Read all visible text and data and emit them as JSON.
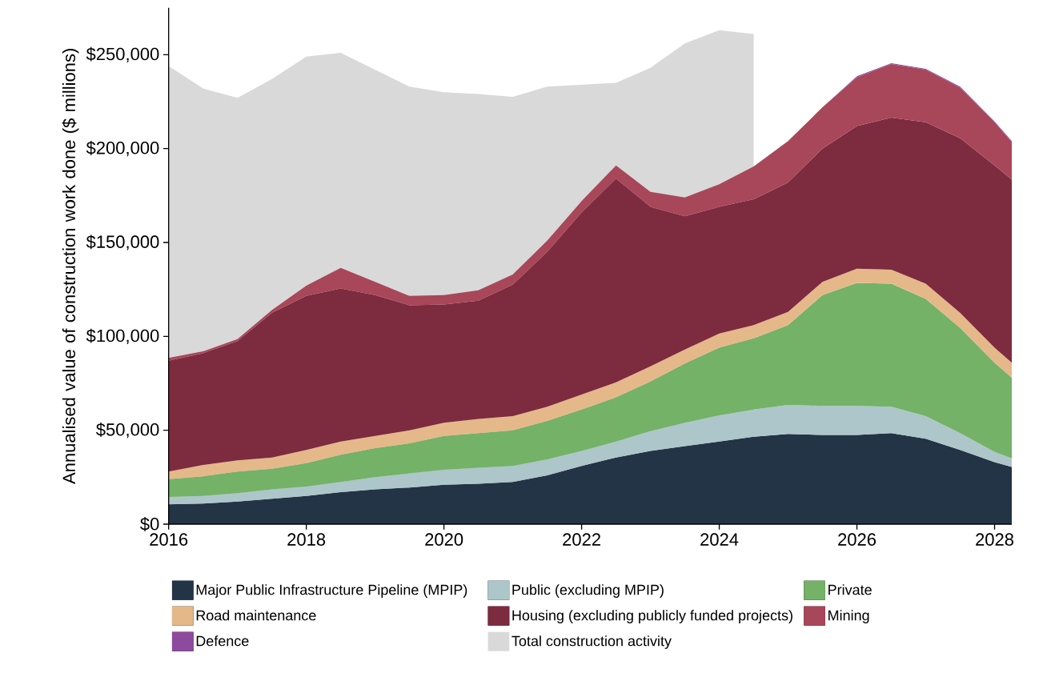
{
  "chart_data": [
    {
      "type": "area",
      "tick_labels": false,
      "legend": "bottom",
      "x": [
        2016,
        2016.5,
        2017,
        2017.5,
        2018,
        2018.5,
        2019,
        2019.5,
        2020,
        2020.5,
        2021,
        2021.5,
        2022,
        2022.5,
        2023,
        2023.5,
        2024,
        2024.5
      ],
      "series": [
        {
          "name": "Total construction activity",
          "color": "#d9d9d9",
          "values": [
            244000,
            232000,
            227000,
            237000,
            249000,
            251000,
            242000,
            233000,
            230000,
            229000,
            227500,
            233000,
            234000,
            235000,
            243000,
            256000,
            263000,
            261000
          ]
        }
      ],
      "xlim": [
        2016,
        2028.25
      ],
      "ylim": [
        0,
        275000
      ]
    },
    {
      "type": "area",
      "stacked": true,
      "ylabel": "Annualised value of construction work done ($ millions)",
      "x": [
        2016,
        2016.5,
        2017,
        2017.5,
        2018,
        2018.5,
        2019,
        2019.5,
        2020,
        2020.5,
        2021,
        2021.5,
        2022,
        2022.5,
        2023,
        2023.5,
        2024,
        2024.5,
        2025,
        2025.5,
        2026,
        2026.5,
        2027,
        2027.5,
        2028,
        2028.25
      ],
      "series": [
        {
          "name": "Major Public Infrastructure Pipeline (MPIP)",
          "color": "#243447",
          "values": [
            10500,
            11000,
            12000,
            13500,
            15000,
            17000,
            18500,
            19500,
            21000,
            21500,
            22500,
            26000,
            31000,
            35500,
            39000,
            41500,
            44000,
            46500,
            48000,
            47500,
            47500,
            48500,
            45500,
            39500,
            33000,
            30500
          ]
        },
        {
          "name": "Public (excluding MPIP)",
          "color": "#adc6c9",
          "values": [
            4000,
            4000,
            4500,
            5000,
            5000,
            5500,
            6500,
            7500,
            8000,
            8500,
            8500,
            8500,
            8000,
            8500,
            10500,
            12500,
            14000,
            14500,
            15500,
            15500,
            15500,
            14000,
            12000,
            9000,
            5500,
            4500
          ]
        },
        {
          "name": "Private",
          "color": "#73b267",
          "values": [
            9500,
            10500,
            11500,
            11000,
            12500,
            14500,
            15500,
            16000,
            18000,
            18500,
            19000,
            20500,
            22000,
            23500,
            26500,
            31500,
            36000,
            38000,
            42500,
            59000,
            65500,
            65500,
            62500,
            56000,
            47500,
            43000
          ]
        },
        {
          "name": "Road maintenance",
          "color": "#e5b88a",
          "values": [
            4000,
            6000,
            6000,
            6000,
            7000,
            7000,
            6500,
            7000,
            7000,
            7500,
            7500,
            7500,
            8000,
            8000,
            8000,
            7500,
            7500,
            7000,
            7000,
            7000,
            7500,
            7500,
            8000,
            8000,
            8000,
            8000
          ]
        },
        {
          "name": "Housing (excluding publicly funded projects)",
          "color": "#7d2b3f",
          "values": [
            59000,
            59500,
            63500,
            77000,
            82000,
            81500,
            75000,
            66500,
            63000,
            63000,
            70000,
            82500,
            97000,
            108500,
            85000,
            71000,
            67500,
            67000,
            69000,
            71000,
            76000,
            81000,
            86000,
            93000,
            97000,
            97500
          ]
        },
        {
          "name": "Mining",
          "color": "#a84759",
          "values": [
            1500,
            1000,
            1000,
            1500,
            5500,
            11000,
            7000,
            5000,
            5000,
            5500,
            5500,
            6000,
            6000,
            7000,
            8000,
            10000,
            12000,
            17500,
            22000,
            22000,
            26000,
            28500,
            28000,
            27000,
            23000,
            20000
          ]
        },
        {
          "name": "Defence",
          "color": "#8e4a9e",
          "values": [
            0,
            0,
            0,
            0,
            0,
            0,
            0,
            0,
            0,
            0,
            0,
            0,
            0,
            0,
            0,
            0,
            0,
            0,
            0,
            0,
            500,
            500,
            500,
            500,
            500,
            500
          ]
        }
      ],
      "xlim": [
        2016,
        2028.25
      ],
      "ylim": [
        0,
        275000
      ],
      "xticks": [
        2016,
        2018,
        2020,
        2022,
        2024,
        2026,
        2028
      ],
      "yticks": [
        {
          "value": 0,
          "label": "$0"
        },
        {
          "value": 50000,
          "label": "$50,000"
        },
        {
          "value": 100000,
          "label": "$100,000"
        },
        {
          "value": 150000,
          "label": "$150,000"
        },
        {
          "value": 200000,
          "label": "$200,000"
        },
        {
          "value": 250000,
          "label": "$250,000"
        }
      ],
      "legend": "bottom"
    }
  ]
}
